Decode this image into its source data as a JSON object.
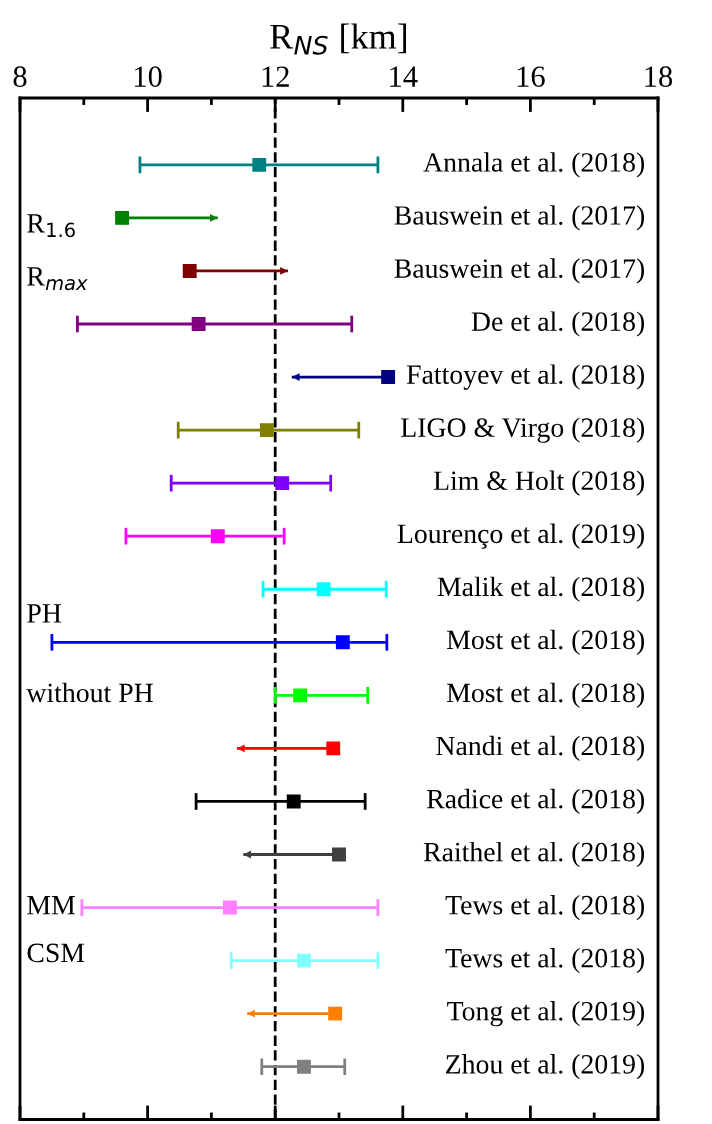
{
  "chart_data": {
    "type": "scatter",
    "orientation": "horizontal",
    "xlabel": "R$_{NS}$ [km]",
    "marker": "square",
    "grid": false,
    "categories": [
      "Annala et al. (2018)",
      "Bauswein et al. (2017)",
      "Bauswein et al. (2017)",
      "De et al. (2018)",
      "Fattoyev et al. (2018)",
      "LIGO & Virgo (2018)",
      "Lim & Holt (2018)",
      "Lourenço et al. (2019)",
      "Malik et al. (2018)",
      "Most et al. (2018)",
      "Most et al. (2018)",
      "Nandi et al. (2018)",
      "Radice et al. (2018)",
      "Raithel et al. (2018)",
      "Tews et al. (2018)",
      "Tews et al. (2018)",
      "Tong et al. (2019)",
      "Zhou et al. (2019)"
    ],
    "values": [
      11.75,
      9.6,
      10.66,
      10.8,
      13.77,
      11.87,
      12.11,
      11.1,
      12.76,
      13.06,
      12.39,
      12.91,
      12.29,
      13.0,
      11.29,
      12.45,
      12.94,
      12.45
    ],
    "errors": [
      [
        9.88,
        13.61
      ],
      [
        9.6,
        11.1
      ],
      [
        10.66,
        12.2
      ],
      [
        8.9,
        13.2
      ],
      [
        12.26,
        13.77
      ],
      [
        10.48,
        13.31
      ],
      [
        10.37,
        12.87
      ],
      [
        9.66,
        12.14
      ],
      [
        11.81,
        13.74
      ],
      [
        8.5,
        13.75
      ],
      [
        12.0,
        13.45
      ],
      [
        11.4,
        12.91
      ],
      [
        10.76,
        13.41
      ],
      [
        11.5,
        13.0
      ],
      [
        8.97,
        13.61
      ],
      [
        11.31,
        13.61
      ],
      [
        11.56,
        12.94
      ],
      [
        11.79,
        13.09
      ]
    ],
    "colors": [
      "#008080",
      "#008000",
      "#800000",
      "#800080",
      "#000080",
      "#808000",
      "#8000ff",
      "#ff00ff",
      "#00ffff",
      "#0000ff",
      "#00ff00",
      "#ff0000",
      "#000000",
      "#404040",
      "#ff80ff",
      "#80ffff",
      "#ff8000",
      "#808080"
    ],
    "xlim": [
      8,
      18
    ],
    "xticks": [
      8,
      10,
      12,
      14,
      16,
      18
    ],
    "ref_lines": [
      {
        "axis": "x",
        "value": 12,
        "color": "#000000",
        "line_style": "dashed"
      }
    ],
    "annotations": [
      "R$_{1.6}$",
      "R$_{max}$",
      "PH",
      "without PH",
      "MM",
      "CSM"
    ]
  }
}
